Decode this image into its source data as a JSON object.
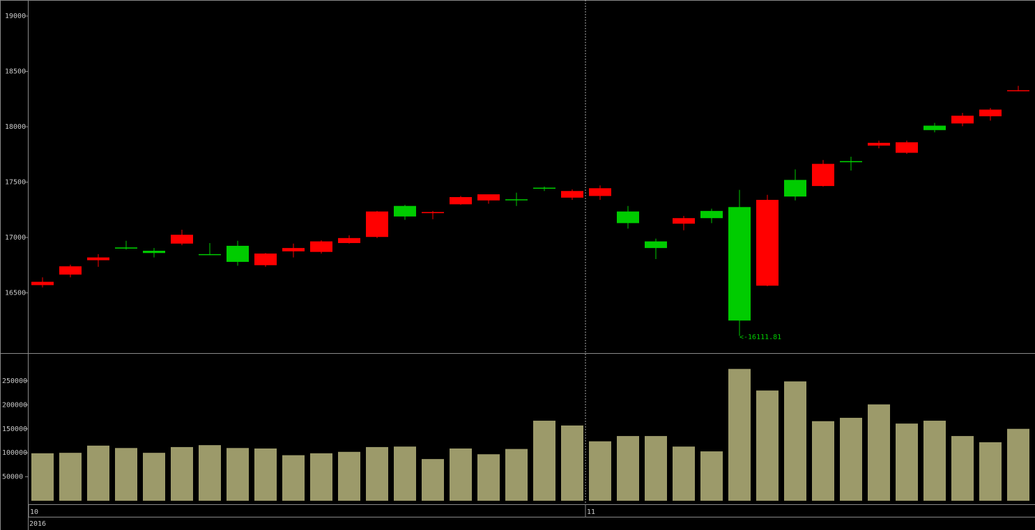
{
  "chart_data": {
    "type": "candlestick",
    "categories": [
      "10",
      null,
      null,
      null,
      null,
      null,
      null,
      null,
      null,
      null,
      null,
      null,
      null,
      null,
      null,
      null,
      null,
      null,
      null,
      null,
      "11",
      null,
      null,
      null,
      null,
      null,
      null,
      null,
      null,
      null,
      null,
      null,
      null,
      null,
      null,
      null
    ],
    "year_label": "2016",
    "open": [
      16570,
      16665,
      16795,
      16910,
      16880,
      16945,
      16850,
      16925,
      16750,
      16875,
      16870,
      16950,
      17005,
      17285,
      17220,
      17300,
      17335,
      17345,
      17450,
      17360,
      17375,
      17235,
      16965,
      17125,
      17240,
      17275,
      16565,
      17520,
      17465,
      17690,
      17830,
      17765,
      18010,
      18030,
      18095,
      18325
    ],
    "high": [
      16640,
      16755,
      16850,
      16970,
      16905,
      17070,
      16950,
      16970,
      16860,
      16945,
      16975,
      17020,
      17240,
      17295,
      17240,
      17375,
      17390,
      17405,
      17460,
      17435,
      17470,
      17285,
      16990,
      17195,
      17260,
      17430,
      17385,
      17615,
      17700,
      17730,
      17875,
      17875,
      18035,
      18125,
      18170,
      18370
    ],
    "low": [
      16550,
      16640,
      16735,
      16890,
      16820,
      16930,
      16840,
      16745,
      16735,
      16820,
      16855,
      16945,
      16995,
      17160,
      17165,
      17295,
      17305,
      17285,
      17420,
      17340,
      17340,
      17080,
      16805,
      17065,
      17130,
      16111.81,
      16560,
      17335,
      17460,
      17605,
      17805,
      17755,
      17950,
      18005,
      18055,
      18320
    ],
    "close": [
      16600,
      16740,
      16820,
      16900,
      16860,
      17025,
      16845,
      16780,
      16855,
      16905,
      16965,
      16995,
      17235,
      17190,
      17230,
      17365,
      17390,
      17340,
      17445,
      17420,
      17445,
      17130,
      16905,
      17175,
      17175,
      16250,
      17340,
      17370,
      17665,
      17680,
      17855,
      17860,
      17970,
      18100,
      18155,
      18330
    ],
    "volume": [
      99000,
      100000,
      115000,
      110000,
      100000,
      112000,
      116000,
      110000,
      109000,
      95000,
      99000,
      102000,
      112000,
      113000,
      87000,
      109000,
      97000,
      108000,
      167000,
      157000,
      124000,
      135000,
      135000,
      113000,
      103000,
      275000,
      230000,
      249000,
      166000,
      173000,
      201000,
      161000,
      167000,
      135000,
      122000,
      150000
    ],
    "annotation": "<-16111.81",
    "ylim": [
      15956,
      19145
    ],
    "yticks": [
      16500,
      17000,
      17500,
      18000,
      18500,
      19000
    ],
    "volume_ylim": [
      0,
      308000
    ],
    "volume_yticks": [
      50000,
      100000,
      150000,
      200000,
      250000
    ],
    "up_color": "#ff0000",
    "down_color": "#00cc00",
    "volume_color": "#9c9a6a"
  }
}
